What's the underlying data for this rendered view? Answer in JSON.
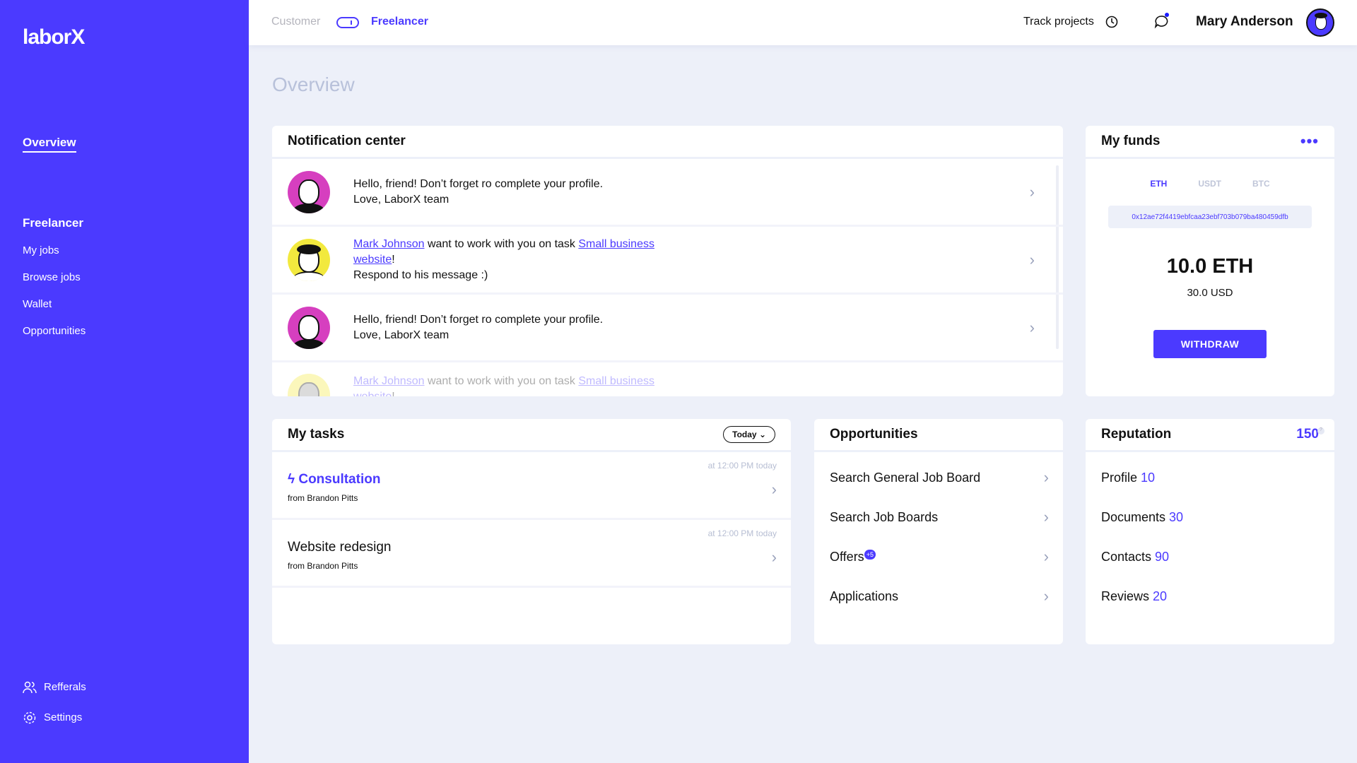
{
  "app": {
    "logo": "laborX",
    "brand_color": "#4b3aff"
  },
  "sidebar": {
    "overview": "Overview",
    "section": "Freelancer",
    "items": [
      {
        "label": "My jobs"
      },
      {
        "label": "Browse jobs"
      },
      {
        "label": "Wallet"
      },
      {
        "label": "Opportunities"
      }
    ],
    "referrals": "Refferals",
    "settings": "Settings"
  },
  "header": {
    "customer": "Customer",
    "freelancer": "Freelancer",
    "track": "Track projects",
    "user": "Mary Anderson"
  },
  "page": {
    "title": "Overview"
  },
  "notifications": {
    "title": "Notification center",
    "items": [
      {
        "type": "profile",
        "line1": "Hello, friend! Don’t forget ro complete your profile.",
        "line2": "Love, LaborX team"
      },
      {
        "type": "offer",
        "user": "Mark Johnson",
        "mid": " want to work with you on task ",
        "task1": "Small business",
        "task2": "website",
        "end": "!",
        "line2": "Respond to his message :)"
      },
      {
        "type": "profile",
        "line1": "Hello, friend! Don’t forget ro complete your profile.",
        "line2": "Love, LaborX team"
      },
      {
        "type": "offer",
        "user": "Mark Johnson",
        "mid": " want to work with you on task ",
        "task1": "Small business",
        "task2": "website",
        "end": "!"
      }
    ]
  },
  "funds": {
    "title": "My funds",
    "tabs": [
      "ETH",
      "USDT",
      "BTC"
    ],
    "active_tab": "ETH",
    "address": "0x12ae72f4419ebfcaa23ebf703b079ba480459dfb",
    "amount": "10.0 ETH",
    "usd": "30.0 USD",
    "withdraw": "WITHDRAW"
  },
  "tasks": {
    "title": "My tasks",
    "filter": "Today",
    "items": [
      {
        "title": "Consultation",
        "from": "from Brandon Pitts",
        "time": "at 12:00 PM today",
        "urgent": true
      },
      {
        "title": "Website redesign",
        "from": "from Brandon Pitts",
        "time": "at 12:00 PM today",
        "urgent": false
      }
    ]
  },
  "opportunities": {
    "title": "Opportunities",
    "items": [
      {
        "label": "Search General Job Board"
      },
      {
        "label": "Search Job Boards"
      },
      {
        "label": "Offers",
        "badge": "+5"
      },
      {
        "label": "Applications"
      }
    ]
  },
  "reputation": {
    "title": "Reputation",
    "total": "150",
    "help": "?",
    "items": [
      {
        "label": "Profile",
        "value": "10"
      },
      {
        "label": "Documents",
        "value": "30"
      },
      {
        "label": "Contacts",
        "value": "90"
      },
      {
        "label": "Reviews",
        "value": "20"
      }
    ]
  }
}
